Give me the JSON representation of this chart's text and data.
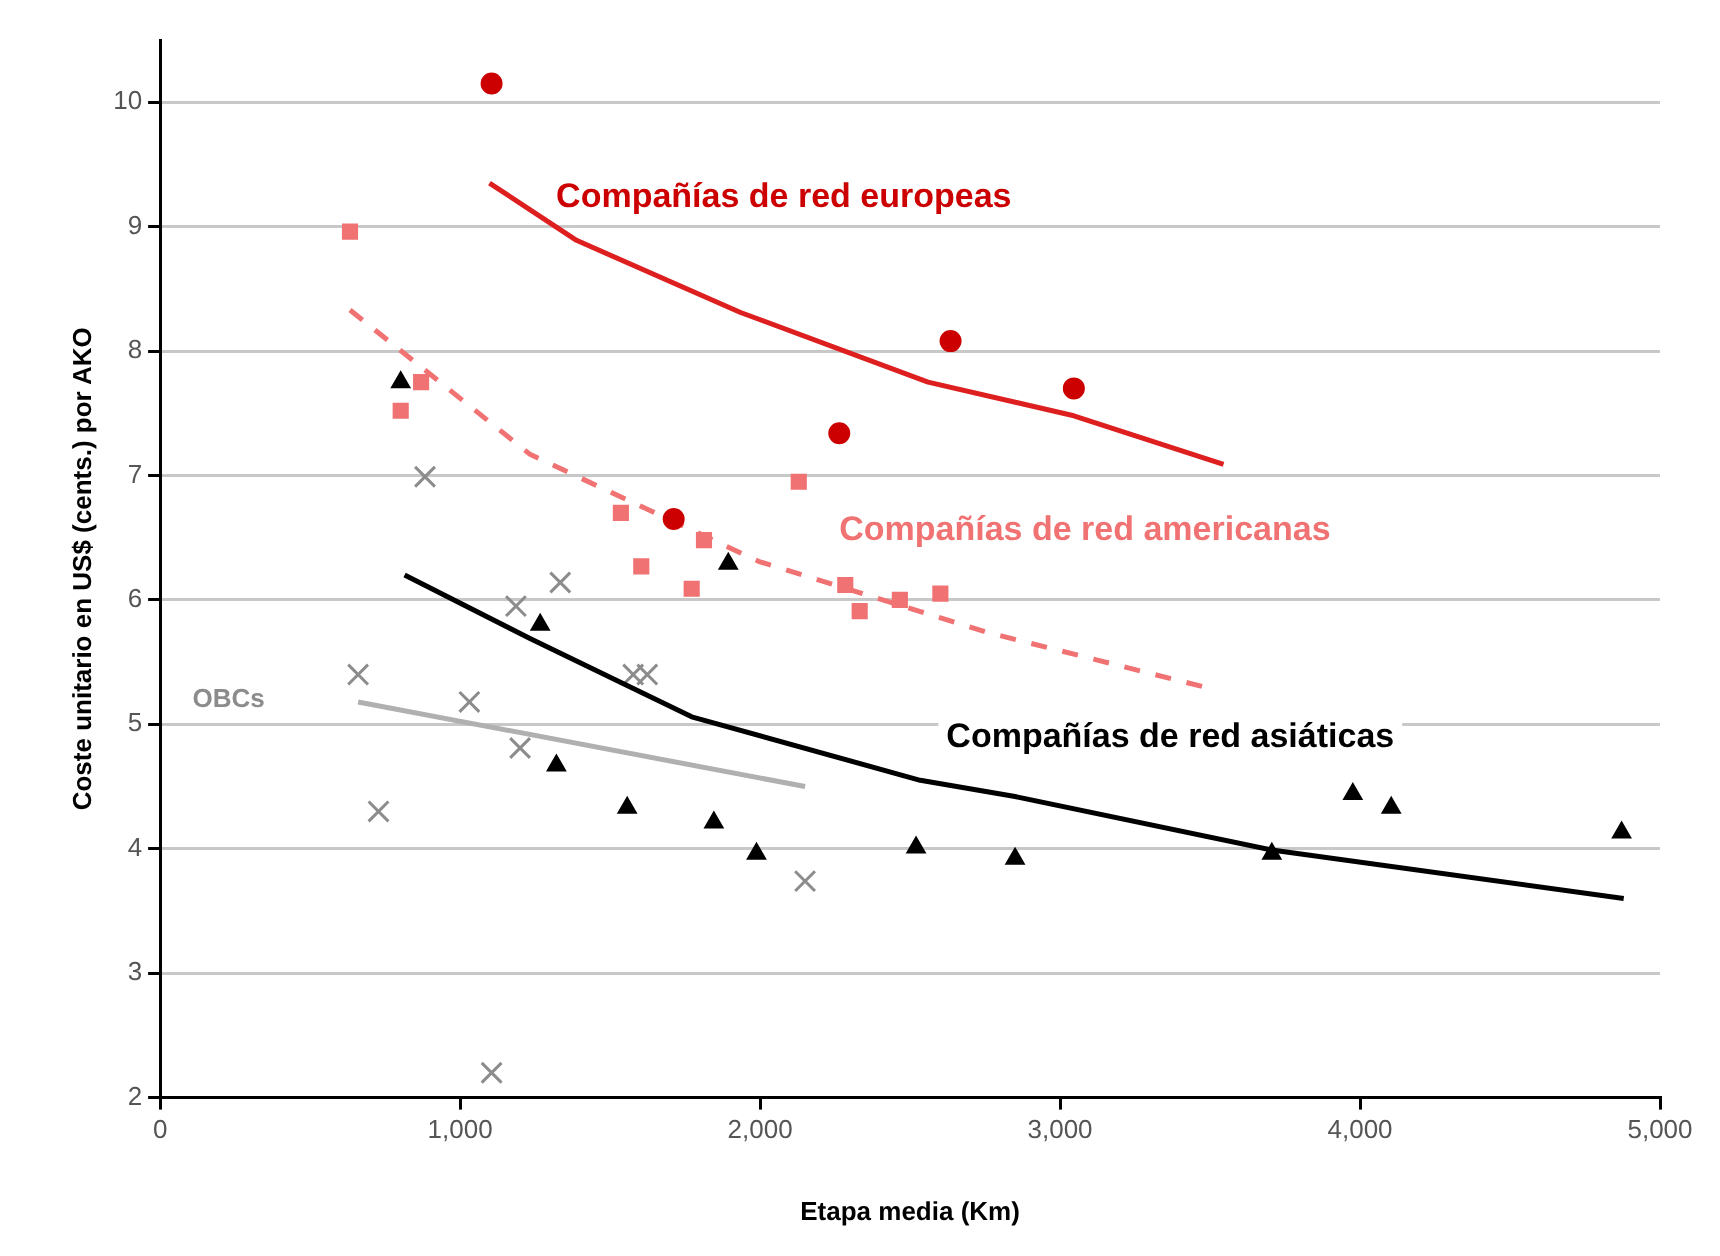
{
  "chart_data": {
    "type": "scatter",
    "xlabel": "Etapa media (Km)",
    "ylabel": "Coste unitario en US$ (cents.) por AKO",
    "xlim": [
      0,
      5000
    ],
    "ylim": [
      2,
      10.5
    ],
    "xticks": [
      0,
      {
        "value": 1000,
        "label": "1,000"
      },
      {
        "value": 2000,
        "label": "2,000"
      },
      {
        "value": 3000,
        "label": "3,000"
      },
      {
        "value": 4000,
        "label": "4,000"
      },
      {
        "value": 5000,
        "label": "5,000"
      }
    ],
    "yticks": [
      2,
      3,
      4,
      5,
      6,
      7,
      8,
      9,
      10
    ],
    "grid": "y",
    "legend": false,
    "series": [
      {
        "name": "Compañías de red europeas",
        "type": "scatter",
        "marker": "circle",
        "color": "#cc0000",
        "x": [
          1105,
          1712,
          2264,
          2635,
          3046
        ],
        "values": [
          10.15,
          6.65,
          7.34,
          8.08,
          7.7
        ]
      },
      {
        "type": "line",
        "marker": "none",
        "line_style": "solid",
        "color": "#dd1f1f",
        "x": [
          1098,
          1388,
          1935,
          2560,
          3046,
          3545
        ],
        "values": [
          9.35,
          8.89,
          8.31,
          7.75,
          7.48,
          7.09
        ]
      },
      {
        "name": "Compañías de red americanas",
        "type": "scatter",
        "marker": "square",
        "color": "#f07272",
        "x": [
          633,
          802,
          870,
          1536,
          1604,
          1772,
          1813,
          2129,
          2284,
          2332,
          2466,
          2601
        ],
        "values": [
          8.96,
          7.52,
          7.75,
          6.7,
          6.27,
          6.09,
          6.48,
          6.95,
          6.12,
          5.91,
          6.0,
          6.05
        ]
      },
      {
        "type": "line",
        "marker": "none",
        "line_style": "dashed",
        "color": "#f07272",
        "x": [
          633,
          1233,
          1995,
          2756,
          3497
        ],
        "values": [
          8.33,
          7.17,
          6.31,
          5.74,
          5.29
        ]
      },
      {
        "name": "Compañías de red asiáticas",
        "type": "scatter",
        "marker": "triangle",
        "color": "#000000",
        "x": [
          802,
          1267,
          1321,
          1557,
          1846,
          1894,
          1988,
          2520,
          2850,
          3706,
          3976,
          4104,
          4872
        ],
        "values": [
          7.75,
          5.8,
          4.67,
          4.33,
          4.21,
          6.29,
          3.96,
          4.01,
          3.92,
          3.96,
          4.44,
          4.33,
          4.13
        ]
      },
      {
        "type": "line",
        "marker": "none",
        "line_style": "solid",
        "color": "#000000",
        "x": [
          815,
          1233,
          1772,
          2534,
          2850,
          3706,
          4879
        ],
        "values": [
          6.2,
          5.69,
          5.06,
          4.55,
          4.42,
          3.99,
          3.6
        ]
      },
      {
        "name": "OBCs",
        "type": "scatter",
        "marker": "cross",
        "color": "#8c8c8c",
        "x": [
          660,
          728,
          883,
          1031,
          1105,
          1186,
          1200,
          1334,
          1577,
          1624,
          2150
        ],
        "values": [
          5.4,
          4.3,
          6.99,
          5.18,
          2.2,
          5.95,
          4.81,
          6.14,
          5.4,
          5.4,
          3.74
        ]
      },
      {
        "type": "line",
        "marker": "none",
        "line_style": "solid",
        "color": "#b0b0b0",
        "x": [
          660,
          2150
        ],
        "values": [
          5.18,
          4.5
        ]
      }
    ]
  }
}
